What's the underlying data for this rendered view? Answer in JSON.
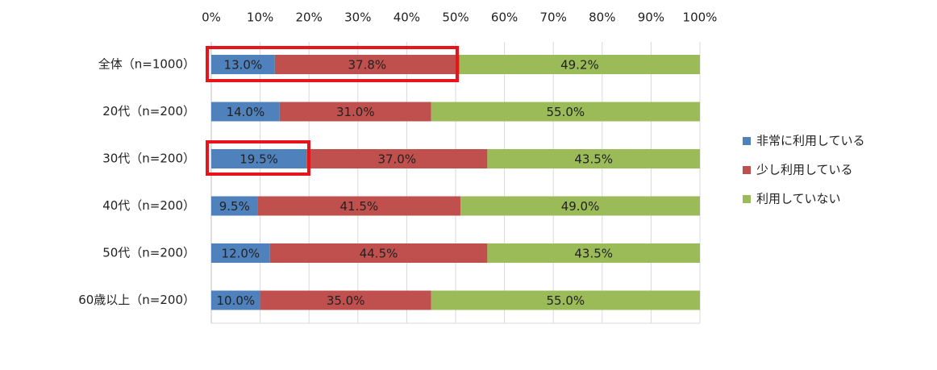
{
  "chart_data": {
    "type": "stacked-bar",
    "orientation": "horizontal",
    "categories": [
      "全体（n=1000）",
      "20代（n=200）",
      "30代（n=200）",
      "40代（n=200）",
      "50代（n=200）",
      "60歳以上（n=200）"
    ],
    "series": [
      {
        "name": "非常に利用している",
        "color": "#4f81bd",
        "values": [
          13.0,
          14.0,
          19.5,
          9.5,
          12.0,
          10.0
        ],
        "value_labels": [
          "13.0%",
          "14.0%",
          "19.5%",
          "9.5%",
          "12.0%",
          "10.0%"
        ]
      },
      {
        "name": "少し利用している",
        "color": "#c0504d",
        "values": [
          37.8,
          31.0,
          37.0,
          41.5,
          44.5,
          35.0
        ],
        "value_labels": [
          "37.8%",
          "31.0%",
          "37.0%",
          "41.5%",
          "44.5%",
          "35.0%"
        ]
      },
      {
        "name": "利用していない",
        "color": "#9bbb59",
        "values": [
          49.2,
          55.0,
          43.5,
          49.0,
          43.5,
          55.0
        ],
        "value_labels": [
          "49.2%",
          "55.0%",
          "43.5%",
          "49.0%",
          "43.5%",
          "55.0%"
        ]
      }
    ],
    "xlim": [
      0,
      100
    ],
    "xticks": [
      {
        "value": 0,
        "label": "0%"
      },
      {
        "value": 10,
        "label": "10%"
      },
      {
        "value": 20,
        "label": "20%"
      },
      {
        "value": 30,
        "label": "30%"
      },
      {
        "value": 40,
        "label": "40%"
      },
      {
        "value": 50,
        "label": "50%"
      },
      {
        "value": 60,
        "label": "60%"
      },
      {
        "value": 70,
        "label": "70%"
      },
      {
        "value": 80,
        "label": "80%"
      },
      {
        "value": 90,
        "label": "90%"
      },
      {
        "value": 100,
        "label": "100%"
      }
    ],
    "grid": true,
    "legend": "right"
  }
}
